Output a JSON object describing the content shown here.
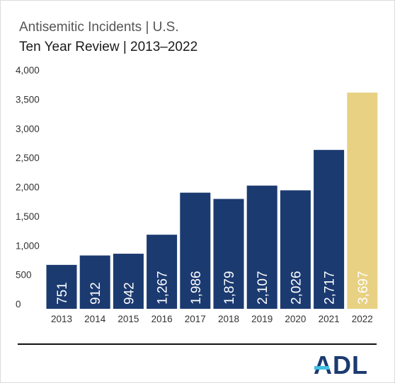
{
  "title": "Antisemitic Incidents | U.S.",
  "subtitle": "Ten Year Review | 2013–2022",
  "logo_text": "ADL",
  "colors": {
    "bar": "#1b3a70",
    "highlight": "#e8d183",
    "bar_label": "#ffffff",
    "highlight_label": "#ffffff",
    "axis_text": "#333333",
    "rule": "#111111",
    "logo": "#1b3a70",
    "logo_accent": "#3ec0e0"
  },
  "chart_data": {
    "type": "bar",
    "title": "Antisemitic Incidents | U.S.",
    "subtitle": "Ten Year Review | 2013–2022",
    "categories": [
      "2013",
      "2014",
      "2015",
      "2016",
      "2017",
      "2018",
      "2019",
      "2020",
      "2021",
      "2022"
    ],
    "values": [
      751,
      912,
      942,
      1267,
      1986,
      1879,
      2107,
      2026,
      2717,
      3697
    ],
    "value_labels": [
      "751",
      "912",
      "942",
      "1,267",
      "1,986",
      "1,879",
      "2,107",
      "2,026",
      "2,717",
      "3,697"
    ],
    "highlight_index": 9,
    "ylim": [
      0,
      4000
    ],
    "yticks": [
      0,
      500,
      1000,
      1500,
      2000,
      2500,
      3000,
      3500,
      4000
    ],
    "ytick_labels": [
      "0",
      "500",
      "1,000",
      "1,500",
      "2,000",
      "2,500",
      "3,000",
      "3,500",
      "4,000"
    ],
    "xlabel": "",
    "ylabel": "",
    "grid": false,
    "legend": "none"
  }
}
